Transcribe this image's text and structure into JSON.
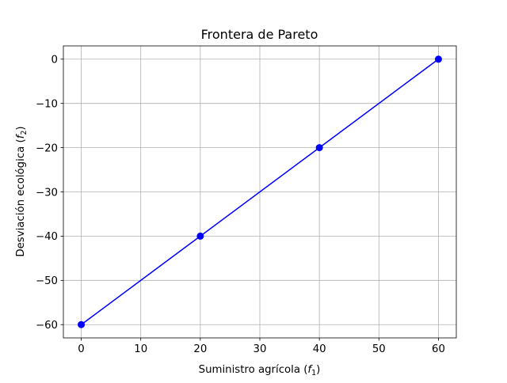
{
  "chart_data": {
    "type": "line",
    "title": "Frontera de Pareto",
    "xlabel": "Suministro agrícola (",
    "xlabel_var": "f",
    "xlabel_sub": "1",
    "xlabel_end": ")",
    "ylabel": "Desviación ecológica (",
    "ylabel_var": "f",
    "ylabel_sub": "2",
    "ylabel_end": ")",
    "xlim": [
      -3,
      63
    ],
    "ylim": [
      -63,
      3
    ],
    "xticks": [
      0,
      10,
      20,
      30,
      40,
      50,
      60
    ],
    "yticks": [
      0,
      -10,
      -20,
      -30,
      -40,
      -50,
      -60
    ],
    "xtick_labels": [
      "0",
      "10",
      "20",
      "30",
      "40",
      "50",
      "60"
    ],
    "ytick_labels": [
      "0",
      "−10",
      "−20",
      "−30",
      "−40",
      "−50",
      "−60"
    ],
    "grid": true,
    "series": [
      {
        "x": [
          0,
          20,
          40,
          60
        ],
        "y": [
          -60,
          -40,
          -20,
          0
        ],
        "color": "#0000ff",
        "marker": "circle"
      }
    ]
  }
}
